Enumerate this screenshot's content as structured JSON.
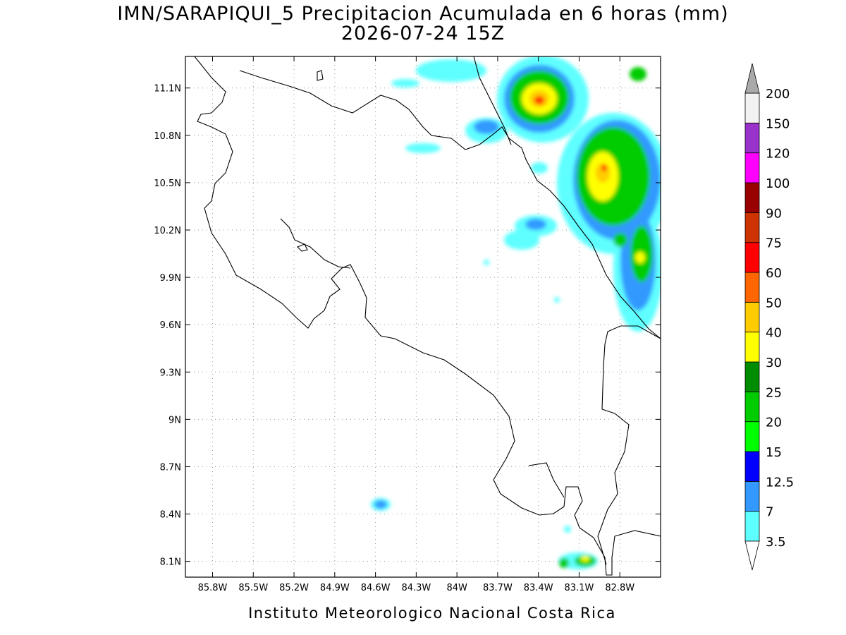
{
  "title": "IMN/SARAPIQUI_5 Precipitacion Acumulada en 6 horas (mm)",
  "subtitle": "2026-07-24 15Z",
  "map": {
    "xlim": [
      -86.0,
      -82.5
    ],
    "ylim": [
      8.0,
      11.3
    ],
    "xticks": [
      {
        "value": -85.8,
        "label": "85.8W"
      },
      {
        "value": -85.5,
        "label": "85.5W"
      },
      {
        "value": -85.2,
        "label": "85.2W"
      },
      {
        "value": -84.9,
        "label": "84.9W"
      },
      {
        "value": -84.6,
        "label": "84.6W"
      },
      {
        "value": -84.3,
        "label": "84.3W"
      },
      {
        "value": -84.0,
        "label": "84W"
      },
      {
        "value": -83.7,
        "label": "83.7W"
      },
      {
        "value": -83.4,
        "label": "83.4W"
      },
      {
        "value": -83.1,
        "label": "83.1W"
      },
      {
        "value": -82.8,
        "label": "82.8W"
      }
    ],
    "yticks": [
      {
        "value": 8.1,
        "label": "8.1N"
      },
      {
        "value": 8.4,
        "label": "8.4N"
      },
      {
        "value": 8.7,
        "label": "8.7N"
      },
      {
        "value": 9.0,
        "label": "9N"
      },
      {
        "value": 9.3,
        "label": "9.3N"
      },
      {
        "value": 9.6,
        "label": "9.6N"
      },
      {
        "value": 9.9,
        "label": "9.9N"
      },
      {
        "value": 10.2,
        "label": "10.2N"
      },
      {
        "value": 10.5,
        "label": "10.5N"
      },
      {
        "value": 10.8,
        "label": "10.8N"
      },
      {
        "value": 11.1,
        "label": "11.1N"
      }
    ],
    "grid": true
  },
  "colorbar": {
    "levels": [
      3.5,
      7,
      12.5,
      15,
      20,
      25,
      30,
      40,
      50,
      60,
      75,
      90,
      100,
      120,
      150,
      200
    ],
    "colors": [
      "#5effff",
      "#3399ff",
      "#0000ff",
      "#00ff00",
      "#00cc00",
      "#008c00",
      "#ffff00",
      "#ffcc00",
      "#ff6600",
      "#ff0000",
      "#cc3300",
      "#990000",
      "#ff00ff",
      "#9933cc",
      "#f2f2f2"
    ],
    "under_color": "#ffffff",
    "over_color": "#aaaaaa"
  },
  "footer": "Instituto Meteorologico Nacional Costa Rica"
}
